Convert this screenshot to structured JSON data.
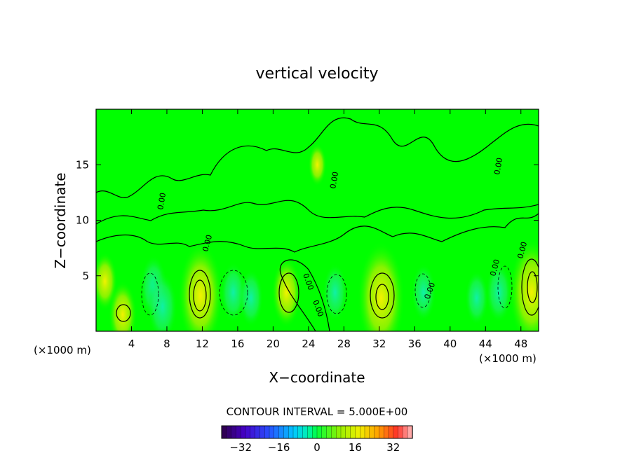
{
  "chart_data": {
    "type": "heatmap",
    "title": "vertical velocity",
    "xlabel": "X−coordinate",
    "ylabel": "Z−coordinate",
    "x_unit_label": "(×1000 m)",
    "y_unit_label": "(×1000 m)",
    "xlim": [
      0,
      50
    ],
    "ylim": [
      0,
      20
    ],
    "x_ticks": [
      4,
      8,
      12,
      16,
      20,
      24,
      28,
      32,
      36,
      40,
      44,
      48
    ],
    "y_ticks": [
      5,
      10,
      15
    ],
    "contour_interval_label": "CONTOUR INTERVAL = 5.000E+00",
    "contour_labels": [
      "0.00",
      "0.00",
      "0.00",
      "0.00",
      "0.00",
      "0.00",
      "0.00",
      "0.00",
      "0.00"
    ],
    "colorbar": {
      "range": [
        -40,
        40
      ],
      "ticks": [
        -32,
        -16,
        0,
        16,
        32
      ],
      "tick_labels": [
        "−32",
        "−16",
        "0",
        "16",
        "32"
      ]
    },
    "features": [
      {
        "x": 1.0,
        "z": 4.5,
        "value": 6
      },
      {
        "x": 3.0,
        "z": 1.5,
        "value": 9
      },
      {
        "x": 6.5,
        "z": 4.0,
        "value": -8
      },
      {
        "x": 7.5,
        "z": 2.2,
        "value": -10
      },
      {
        "x": 11.8,
        "z": 3.2,
        "value": 22
      },
      {
        "x": 15.5,
        "z": 3.5,
        "value": -7
      },
      {
        "x": 17.5,
        "z": 3.0,
        "value": -6
      },
      {
        "x": 21.5,
        "z": 3.5,
        "value": 10
      },
      {
        "x": 27.0,
        "z": 3.5,
        "value": -6
      },
      {
        "x": 32.2,
        "z": 3.0,
        "value": 24
      },
      {
        "x": 37.0,
        "z": 3.5,
        "value": -6
      },
      {
        "x": 43.0,
        "z": 3.0,
        "value": -5
      },
      {
        "x": 45.5,
        "z": 3.5,
        "value": -7
      },
      {
        "x": 49.2,
        "z": 3.5,
        "value": 22
      },
      {
        "x": 25.0,
        "z": 15.0,
        "value": 1
      }
    ]
  }
}
